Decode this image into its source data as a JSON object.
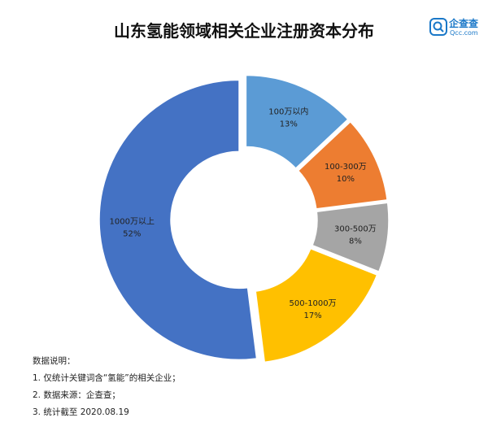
{
  "title": "山东氢能领域相关企业注册资本分布",
  "logo": {
    "name": "企查查",
    "sub": "Qcc.com"
  },
  "chart_data": {
    "type": "pie",
    "style": "donut",
    "categories": [
      "100万以内",
      "100-300万",
      "300-500万",
      "500-1000万",
      "1000万以上"
    ],
    "values": [
      13,
      10,
      8,
      17,
      52
    ],
    "value_labels": [
      "13%",
      "10%",
      "8%",
      "17%",
      "52%"
    ],
    "colors": [
      "#5b9bd5",
      "#ed7d31",
      "#a5a5a5",
      "#ffc000",
      "#4472c4"
    ],
    "legend": "none"
  },
  "notes": {
    "heading": "数据说明：",
    "items": [
      "1. 仅统计关键词含“氢能”的相关企业；",
      "2. 数据来源：企查查；",
      "3. 统计截至 2020.08.19"
    ]
  }
}
